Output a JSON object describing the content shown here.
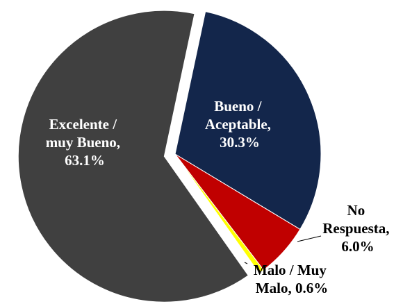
{
  "chart_data": {
    "type": "pie",
    "values": [
      30.3,
      6.0,
      0.6,
      63.1
    ],
    "value_labels": [
      "Bueno / Aceptable, 30.3%",
      "No Respuesta, 6.0%",
      "Malo / Muy Malo, 0.6%",
      "Excelente / muy Bueno, 63.1%"
    ],
    "colors": [
      "#13264b",
      "#c00000",
      "#ffff00",
      "#404040"
    ],
    "exploded": [
      false,
      false,
      false,
      true
    ]
  }
}
